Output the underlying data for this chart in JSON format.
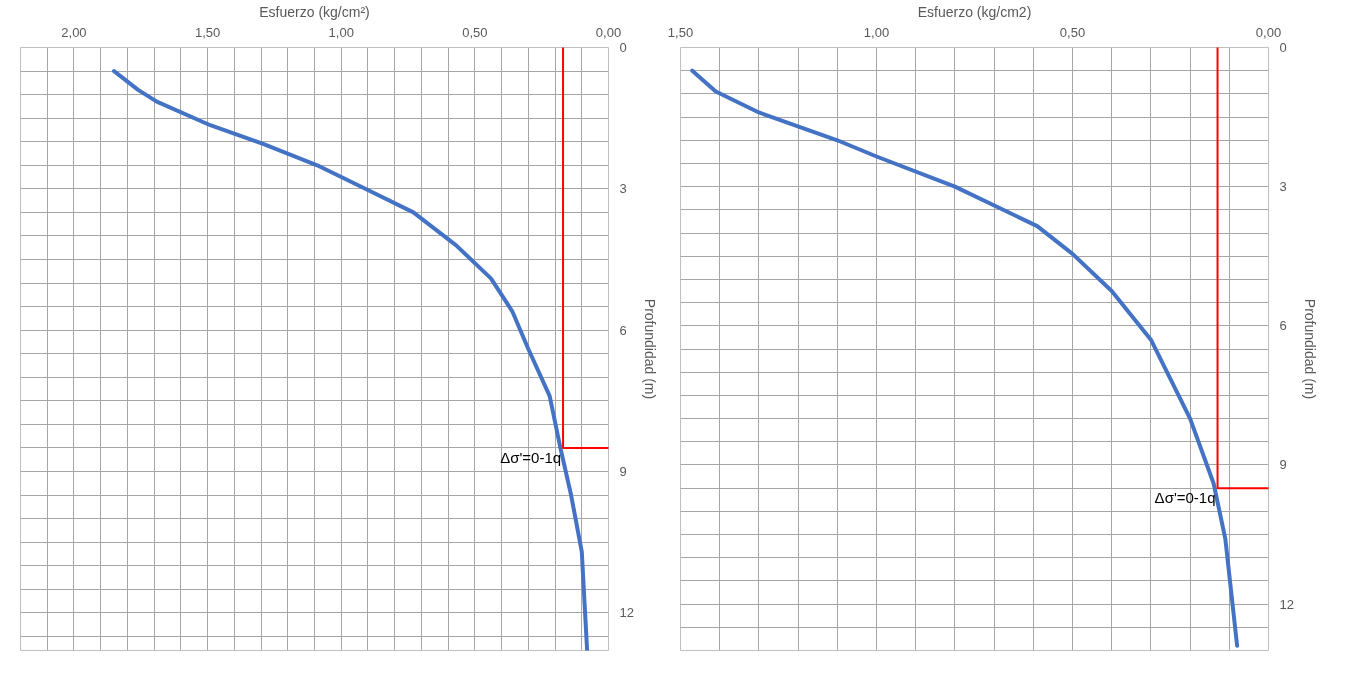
{
  "chart_data": [
    {
      "type": "line",
      "xlabel": "Esfuerzo (kg/cm²)",
      "ylabel": "Profundidad (m)",
      "xlim": [
        2.2,
        0
      ],
      "ylim": [
        12.8,
        0
      ],
      "xticks": [
        {
          "value": 2.2,
          "label": null
        },
        {
          "value": 2.1,
          "label": null
        },
        {
          "value": 2,
          "label": "2,00"
        },
        {
          "value": 1.9,
          "label": null
        },
        {
          "value": 1.8,
          "label": null
        },
        {
          "value": 1.7,
          "label": null
        },
        {
          "value": 1.6,
          "label": null
        },
        {
          "value": 1.5,
          "label": "1,50"
        },
        {
          "value": 1.4,
          "label": null
        },
        {
          "value": 1.3,
          "label": null
        },
        {
          "value": 1.2,
          "label": null
        },
        {
          "value": 1.1,
          "label": null
        },
        {
          "value": 1,
          "label": "1,00"
        },
        {
          "value": 0.9,
          "label": null
        },
        {
          "value": 0.8,
          "label": null
        },
        {
          "value": 0.7,
          "label": null
        },
        {
          "value": 0.6,
          "label": null
        },
        {
          "value": 0.5,
          "label": "0,50"
        },
        {
          "value": 0.4,
          "label": null
        },
        {
          "value": 0.3,
          "label": null
        },
        {
          "value": 0.2,
          "label": null
        },
        {
          "value": 0.1,
          "label": null
        },
        {
          "value": 0,
          "label": "0,00"
        }
      ],
      "yticks": [
        0,
        {
          "value": 0.5,
          "label": null
        },
        {
          "value": 1,
          "label": null
        },
        {
          "value": 1.5,
          "label": null
        },
        {
          "value": 2,
          "label": null
        },
        {
          "value": 2.5,
          "label": null
        },
        3,
        {
          "value": 3.5,
          "label": null
        },
        {
          "value": 4,
          "label": null
        },
        {
          "value": 4.5,
          "label": null
        },
        {
          "value": 5,
          "label": null
        },
        {
          "value": 5.5,
          "label": null
        },
        6,
        {
          "value": 6.5,
          "label": null
        },
        {
          "value": 7,
          "label": null
        },
        {
          "value": 7.5,
          "label": null
        },
        {
          "value": 8,
          "label": null
        },
        {
          "value": 8.5,
          "label": null
        },
        9,
        {
          "value": 9.5,
          "label": null
        },
        {
          "value": 10,
          "label": null
        },
        {
          "value": 10.5,
          "label": null
        },
        {
          "value": 11,
          "label": null
        },
        {
          "value": 11.5,
          "label": null
        },
        12,
        {
          "value": 12.5,
          "label": null
        }
      ],
      "grid": true,
      "series": [
        {
          "color": "#4472c4",
          "x": [
            1.85,
            1.76,
            1.69,
            1.49,
            1.29,
            1.09,
            0.91,
            0.73,
            0.57,
            0.44,
            0.36,
            0.3,
            0.22,
            0.18,
            0.14,
            0.1,
            0.08
          ],
          "values": [
            0.5,
            0.9,
            1.15,
            1.65,
            2.05,
            2.5,
            3,
            3.5,
            4.2,
            4.9,
            5.6,
            6.4,
            7.4,
            8.5,
            9.5,
            10.7,
            12.8
          ]
        },
        {
          "color": "#ff0000",
          "x": [
            0.17,
            0.17,
            0
          ],
          "values": [
            0,
            8.5,
            8.5
          ]
        }
      ],
      "annotations": [
        {
          "text": "Δσ'=0-1q",
          "x": 0.17,
          "y": 8.5
        }
      ]
    },
    {
      "type": "line",
      "xlabel": "Esfuerzo (kg/cm2)",
      "ylabel": "Profundidad (m)",
      "xlim": [
        1.5,
        0
      ],
      "ylim": [
        13,
        0
      ],
      "xticks": [
        {
          "value": 1.5,
          "label": "1,50"
        },
        {
          "value": 1.4,
          "label": null
        },
        {
          "value": 1.3,
          "label": null
        },
        {
          "value": 1.2,
          "label": null
        },
        {
          "value": 1.1,
          "label": null
        },
        {
          "value": 1,
          "label": "1,00"
        },
        {
          "value": 0.9,
          "label": null
        },
        {
          "value": 0.8,
          "label": null
        },
        {
          "value": 0.7,
          "label": null
        },
        {
          "value": 0.6,
          "label": null
        },
        {
          "value": 0.5,
          "label": "0,50"
        },
        {
          "value": 0.4,
          "label": null
        },
        {
          "value": 0.3,
          "label": null
        },
        {
          "value": 0.2,
          "label": null
        },
        {
          "value": 0.1,
          "label": null
        },
        {
          "value": 0,
          "label": "0,00"
        }
      ],
      "yticks": [
        0,
        {
          "value": 0.5,
          "label": null
        },
        {
          "value": 1,
          "label": null
        },
        {
          "value": 1.5,
          "label": null
        },
        {
          "value": 2,
          "label": null
        },
        {
          "value": 2.5,
          "label": null
        },
        3,
        {
          "value": 3.5,
          "label": null
        },
        {
          "value": 4,
          "label": null
        },
        {
          "value": 4.5,
          "label": null
        },
        {
          "value": 5,
          "label": null
        },
        {
          "value": 5.5,
          "label": null
        },
        6,
        {
          "value": 6.5,
          "label": null
        },
        {
          "value": 7,
          "label": null
        },
        {
          "value": 7.5,
          "label": null
        },
        {
          "value": 8,
          "label": null
        },
        {
          "value": 8.5,
          "label": null
        },
        9,
        {
          "value": 9.5,
          "label": null
        },
        {
          "value": 10,
          "label": null
        },
        {
          "value": 10.5,
          "label": null
        },
        {
          "value": 11,
          "label": null
        },
        {
          "value": 11.5,
          "label": null
        },
        12,
        {
          "value": 12.5,
          "label": null
        },
        {
          "value": 13,
          "label": null
        }
      ],
      "grid": true,
      "series": [
        {
          "color": "#4472c4",
          "x": [
            1.47,
            1.41,
            1.3,
            1.1,
            1.0,
            0.8,
            0.59,
            0.5,
            0.4,
            0.3,
            0.2,
            0.14,
            0.11,
            0.08
          ],
          "values": [
            0.5,
            0.95,
            1.4,
            2,
            2.35,
            3,
            3.85,
            4.45,
            5.25,
            6.3,
            8,
            9.4,
            10.6,
            12.9
          ]
        },
        {
          "color": "#ff0000",
          "x": [
            0.13,
            0.13,
            0
          ],
          "values": [
            0,
            9.5,
            9.5
          ]
        }
      ],
      "annotations": [
        {
          "text": "Δσ'=0-1q",
          "x": 0.13,
          "y": 9.5
        }
      ]
    }
  ]
}
